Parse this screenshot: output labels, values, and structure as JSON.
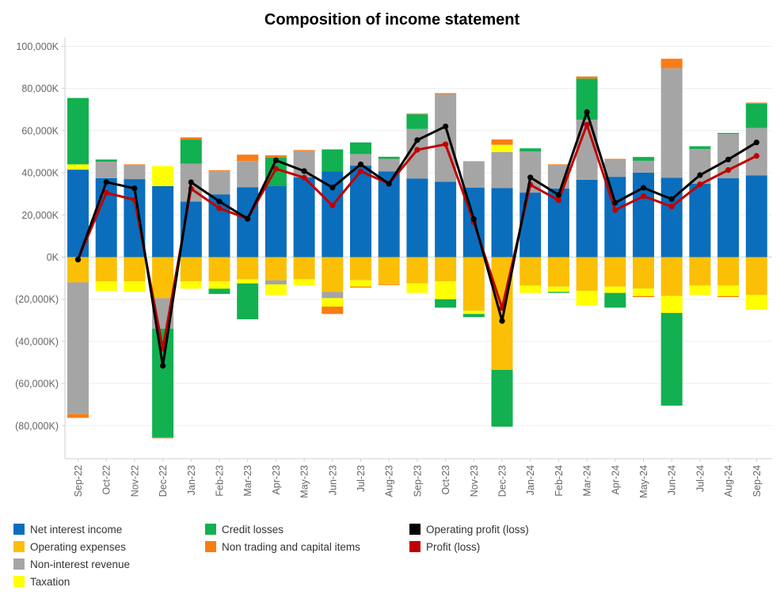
{
  "chart_data": {
    "type": "bar",
    "title": "Composition of income statement",
    "categories": [
      "Sep-22",
      "Oct-22",
      "Nov-22",
      "Dec-22",
      "Jan-23",
      "Feb-23",
      "Mar-23",
      "Apr-23",
      "May-23",
      "Jun-23",
      "Jul-23",
      "Aug-23",
      "Sep-23",
      "Oct-23",
      "Nov-23",
      "Dec-23",
      "Jan-24",
      "Feb-24",
      "Mar-24",
      "Apr-24",
      "May-24",
      "Jun-24",
      "Jul-24",
      "Aug-24",
      "Sep-24"
    ],
    "ylim": [
      -90000,
      100000
    ],
    "yticks": [
      100000,
      80000,
      60000,
      40000,
      20000,
      0,
      -20000,
      -40000,
      -60000,
      -80000
    ],
    "ytick_labels": [
      "100,000K",
      "80,000K",
      "60,000K",
      "40,000K",
      "20,000K",
      "0K",
      "(20,000K)",
      "(40,000K)",
      "(60,000K)",
      "(80,000K)"
    ],
    "grid": true,
    "legend_position": "bottom",
    "series": [
      {
        "name": "Net interest income",
        "color": "#0a6ebd",
        "values": [
          41500,
          37500,
          37000,
          33700,
          26300,
          29700,
          33100,
          33800,
          37800,
          40600,
          43400,
          40600,
          37300,
          35800,
          33000,
          32800,
          30600,
          32500,
          36700,
          38100,
          40100,
          37600,
          34800,
          37400,
          38800
        ]
      },
      {
        "name": "Operating expenses",
        "color": "#fbbf06",
        "values": [
          -12000,
          -11500,
          -11500,
          -19500,
          -11500,
          -11500,
          -10500,
          -11000,
          -10500,
          -16500,
          -11000,
          -13000,
          -12500,
          -11500,
          -25500,
          -53500,
          -13500,
          -14000,
          -16000,
          -14000,
          -15000,
          -18500,
          -13500,
          -13500,
          -18000
        ]
      },
      {
        "name": "Non-interest revenue",
        "color": "#a5a5a5",
        "values": [
          -62500,
          7800,
          6500,
          -14500,
          18000,
          11000,
          12500,
          -2000,
          12500,
          -3000,
          5500,
          6000,
          23500,
          41500,
          12500,
          17000,
          19500,
          11000,
          28500,
          8000,
          5600,
          52000,
          16500,
          21000,
          22500
        ]
      },
      {
        "name": "Taxation",
        "color": "#ffff00",
        "values": [
          2500,
          -4500,
          -5000,
          9500,
          -3500,
          -3500,
          -2000,
          -5000,
          -3000,
          -4000,
          -3000,
          0,
          -4500,
          -8500,
          -1500,
          3500,
          -3500,
          -2500,
          -7000,
          -3000,
          -3500,
          -8000,
          -4500,
          -5000,
          -7000
        ]
      },
      {
        "name": "Credit losses",
        "color": "#12b050",
        "values": [
          31500,
          1000,
          0,
          -51500,
          11500,
          -2500,
          -17000,
          13500,
          0,
          10500,
          5500,
          1000,
          7000,
          -4000,
          -1500,
          -27000,
          1500,
          -500,
          19500,
          -7000,
          1800,
          -44000,
          1300,
          500,
          11500
        ]
      },
      {
        "name": "Non trading and capital items",
        "color": "#fa7c14",
        "values": [
          -1800,
          0,
          500,
          -500,
          1000,
          500,
          3000,
          1000,
          500,
          -3500,
          -500,
          -300,
          300,
          500,
          0,
          2500,
          0,
          500,
          1000,
          500,
          -500,
          4500,
          0,
          -500,
          500
        ]
      }
    ],
    "lines": [
      {
        "name": "Operating profit (loss)",
        "color": "#000000",
        "values": [
          -1200,
          35600,
          32600,
          -51600,
          35500,
          26400,
          18200,
          45900,
          40800,
          33000,
          44000,
          34800,
          55500,
          62000,
          18000,
          -30300,
          37800,
          29500,
          68800,
          25800,
          32900,
          27500,
          38900,
          46300,
          54400
        ]
      },
      {
        "name": "Profit (loss)",
        "color": "#c00000",
        "values": [
          -1200,
          30500,
          27200,
          -43500,
          32400,
          23200,
          18200,
          41900,
          37700,
          24500,
          40700,
          34800,
          50900,
          53500,
          16600,
          -24200,
          34300,
          27000,
          62800,
          22300,
          28900,
          24000,
          34500,
          41300,
          48000
        ]
      }
    ]
  }
}
